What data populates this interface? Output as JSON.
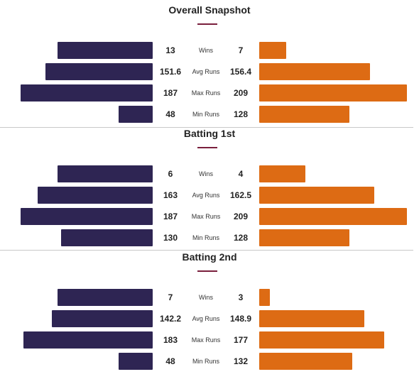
{
  "colors": {
    "team_a": "#2e2553",
    "team_b": "#dd6b14",
    "accent": "#7a1f3d"
  },
  "scale_max": 209,
  "sections": [
    {
      "title": "Overall Snapshot",
      "rows": [
        {
          "label": "Wins",
          "a": 13,
          "b": 7,
          "a_text": "13",
          "b_text": "7",
          "scale": 13
        },
        {
          "label": "Avg Runs",
          "a": 151.6,
          "b": 156.4,
          "a_text": "151.6",
          "b_text": "156.4"
        },
        {
          "label": "Max Runs",
          "a": 187,
          "b": 209,
          "a_text": "187",
          "b_text": "209"
        },
        {
          "label": "Min Runs",
          "a": 48,
          "b": 128,
          "a_text": "48",
          "b_text": "128"
        }
      ]
    },
    {
      "title": "Batting 1st",
      "rows": [
        {
          "label": "Wins",
          "a": 6,
          "b": 4,
          "a_text": "6",
          "b_text": "4",
          "scale": 6
        },
        {
          "label": "Avg Runs",
          "a": 163,
          "b": 162.5,
          "a_text": "163",
          "b_text": "162.5"
        },
        {
          "label": "Max Runs",
          "a": 187,
          "b": 209,
          "a_text": "187",
          "b_text": "209"
        },
        {
          "label": "Min Runs",
          "a": 130,
          "b": 128,
          "a_text": "130",
          "b_text": "128"
        }
      ]
    },
    {
      "title": "Batting 2nd",
      "rows": [
        {
          "label": "Wins",
          "a": 7,
          "b": 3,
          "a_text": "7",
          "b_text": "3",
          "scale": 7
        },
        {
          "label": "Avg Runs",
          "a": 142.2,
          "b": 148.9,
          "a_text": "142.2",
          "b_text": "148.9"
        },
        {
          "label": "Max Runs",
          "a": 183,
          "b": 177,
          "a_text": "183",
          "b_text": "177"
        },
        {
          "label": "Min Runs",
          "a": 48,
          "b": 132,
          "a_text": "48",
          "b_text": "132"
        }
      ]
    }
  ]
}
